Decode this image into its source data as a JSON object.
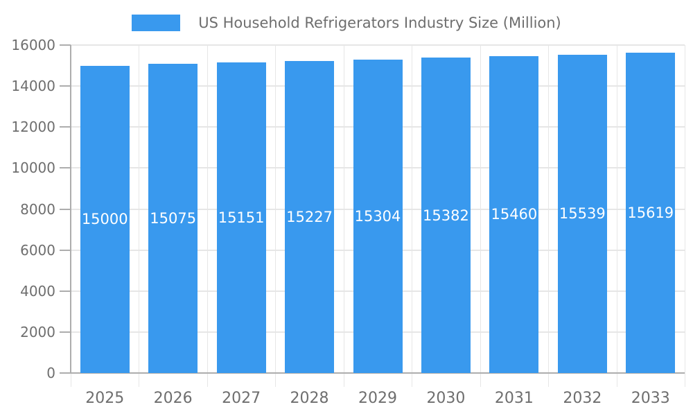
{
  "chart_data": {
    "type": "bar",
    "title": "US Household Refrigerators Industry Size (Million)",
    "categories": [
      "2025",
      "2026",
      "2027",
      "2028",
      "2029",
      "2030",
      "2031",
      "2032",
      "2033"
    ],
    "series": [
      {
        "name": "US Household Refrigerators Industry Size (Million)",
        "values": [
          15000,
          15075,
          15151,
          15227,
          15304,
          15382,
          15460,
          15539,
          15619
        ]
      }
    ],
    "value_labels": [
      "15000",
      "15075",
      "15151",
      "15227",
      "15304",
      "15382",
      "15460",
      "15539",
      "15619"
    ],
    "xlabel": "",
    "ylabel": "",
    "ylim": [
      0,
      16000
    ],
    "yticks": [
      0,
      2000,
      4000,
      6000,
      8000,
      10000,
      12000,
      14000,
      16000
    ],
    "grid": true,
    "legend_position": "top"
  },
  "legend": {
    "label": "US Household Refrigerators Industry Size (Million)"
  },
  "colors": {
    "bar": "#3999EE",
    "axis": "#ADADAD",
    "grid": "#E6E6E6",
    "text": "#6E6E6E",
    "value_label": "#FFFFFF",
    "background": "#FFFFFF"
  }
}
